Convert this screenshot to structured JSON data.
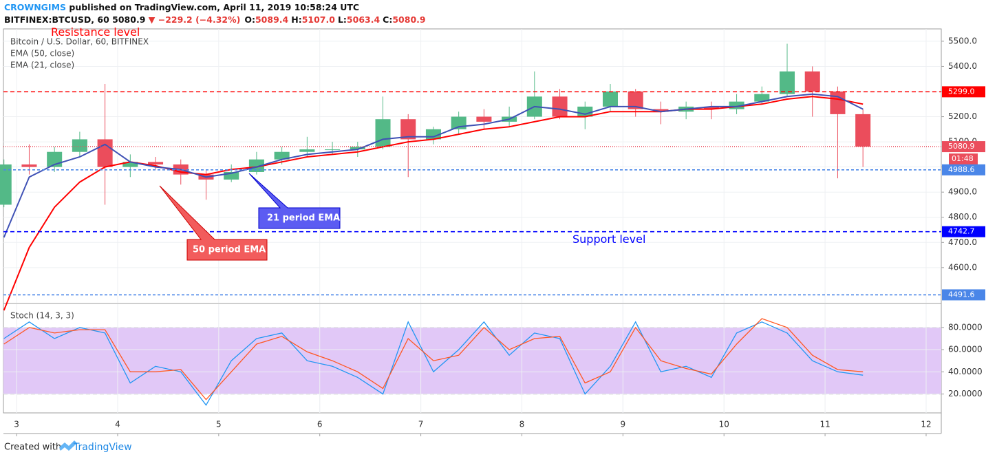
{
  "chart_data": [
    {
      "type": "candlestick",
      "publisher": "CROWNGIMS",
      "published": "published on TradingView.com, April 11, 2019 10:58:24 UTC",
      "symbol": "BITFINEX:BTCUSD, 60",
      "last": "5080.9",
      "change": "▼ −229.2 (−4.32%)",
      "ohlc": [
        {
          "key": "O:",
          "value": "5089.4"
        },
        {
          "key": "H:",
          "value": "5107.0"
        },
        {
          "key": "L:",
          "value": "5063.4"
        },
        {
          "key": "C:",
          "value": "5080.9"
        }
      ],
      "subtitle": "Bitcoin / U.S. Dollar, 60, BITFINEX",
      "footer": "Created with",
      "brand": "TradingView",
      "countdown": "01:48",
      "x": [
        2.875,
        3.125,
        3.375,
        3.625,
        3.875,
        4.125,
        4.375,
        4.625,
        4.875,
        5.125,
        5.375,
        5.625,
        5.875,
        6.125,
        6.375,
        6.625,
        6.875,
        7.125,
        7.375,
        7.625,
        7.875,
        8.125,
        8.375,
        8.625,
        8.875,
        9.125,
        9.375,
        9.625,
        9.875,
        10.125,
        10.375,
        10.625,
        10.875,
        11.125,
        11.375
      ],
      "open": [
        4850,
        5010,
        5000,
        5060,
        5110,
        5000,
        5020,
        5010,
        4970,
        4950,
        4980,
        5030,
        5060,
        5070,
        5070,
        5080,
        5190,
        5110,
        5150,
        5200,
        5180,
        5200,
        5280,
        5200,
        5240,
        5300,
        5230,
        5220,
        5240,
        5230,
        5260,
        5290,
        5380,
        5300,
        5210
      ],
      "high": [
        5030,
        5090,
        5080,
        5140,
        5330,
        5050,
        5040,
        5030,
        4990,
        5010,
        5060,
        5080,
        5120,
        5100,
        5100,
        5280,
        5210,
        5160,
        5220,
        5230,
        5240,
        5380,
        5310,
        5260,
        5330,
        5310,
        5260,
        5260,
        5260,
        5290,
        5320,
        5490,
        5400,
        5320,
        5230
      ],
      "low": [
        4840,
        4970,
        4980,
        5040,
        4850,
        4960,
        4990,
        4930,
        4870,
        4940,
        4970,
        5010,
        5040,
        5050,
        5040,
        5070,
        4960,
        5090,
        5130,
        5150,
        5160,
        5190,
        5190,
        5150,
        5220,
        5200,
        5170,
        5190,
        5190,
        5210,
        5250,
        5280,
        5200,
        4955,
        5000
      ],
      "close": [
        5010,
        5000,
        5060,
        5110,
        5000,
        5020,
        5010,
        4970,
        4950,
        4980,
        5030,
        5060,
        5070,
        5070,
        5080,
        5190,
        5110,
        5150,
        5200,
        5180,
        5200,
        5280,
        5200,
        5240,
        5300,
        5230,
        5220,
        5240,
        5230,
        5260,
        5290,
        5380,
        5300,
        5210,
        5080.9
      ],
      "color_up": "#53b987",
      "color_down": "#eb4d5c",
      "series": [
        {
          "name": "EMA (50, close)",
          "color": "#ff0000",
          "values": [
            4430,
            4680,
            4840,
            4940,
            5000,
            5020,
            5005,
            4980,
            4970,
            4990,
            5000,
            5020,
            5040,
            5050,
            5060,
            5080,
            5100,
            5110,
            5130,
            5150,
            5160,
            5180,
            5200,
            5200,
            5220,
            5220,
            5220,
            5230,
            5230,
            5240,
            5250,
            5270,
            5280,
            5270,
            5250
          ]
        },
        {
          "name": "EMA (21, close)",
          "color": "#3f51b5",
          "values": [
            4720,
            4960,
            5010,
            5040,
            5090,
            5020,
            5000,
            4990,
            4960,
            4975,
            5000,
            5030,
            5050,
            5060,
            5070,
            5110,
            5120,
            5120,
            5160,
            5170,
            5190,
            5240,
            5230,
            5210,
            5240,
            5240,
            5220,
            5230,
            5240,
            5240,
            5260,
            5280,
            5290,
            5280,
            5230
          ]
        }
      ],
      "levels": [
        {
          "value": 5299,
          "label": "5299.0",
          "color": "#ff0000",
          "dash": "6,4",
          "annotation": "Resistance level"
        },
        {
          "value": 5080.9,
          "label": "5080.9",
          "color": "#eb4d5c",
          "dash": "1,2"
        },
        {
          "value": 4988.6,
          "label": "4988.6",
          "color": "#4a86e8",
          "dash": "4,3"
        },
        {
          "value": 4742.7,
          "label": "4742.7",
          "color": "#0000ff",
          "dash": "6,4",
          "annotation": "Support level"
        },
        {
          "value": 4491.6,
          "label": "4491.6",
          "color": "#4a86e8",
          "dash": "4,3"
        }
      ],
      "callouts": [
        {
          "text": "50 period EMA",
          "color": "#f25c5c"
        },
        {
          "text": "21 period EMA",
          "color": "#5c5cf2"
        }
      ],
      "xlim": [
        2.87,
        12.15
      ],
      "xticks": [
        3,
        4,
        5,
        6,
        7,
        8,
        9,
        10,
        11,
        12
      ],
      "ylim": [
        4460,
        5549
      ],
      "yticks": [
        {
          "value": 4600,
          "label": "4600.0"
        },
        {
          "value": 4700,
          "label": "4700.0"
        },
        {
          "value": 4800,
          "label": "4800.0"
        },
        {
          "value": 4900,
          "label": "4900.0"
        },
        {
          "value": 5000,
          "label": "5000.0"
        },
        {
          "value": 5100,
          "label": "5100.0"
        },
        {
          "value": 5200,
          "label": "5200.0"
        },
        {
          "value": 5300,
          "label": "5300.0"
        },
        {
          "value": 5400,
          "label": "5400.0"
        },
        {
          "value": 5500,
          "label": "5500.0"
        }
      ],
      "grid": true
    },
    {
      "type": "line",
      "title": "Stoch (14, 3, 3)",
      "x": [
        2.875,
        3.125,
        3.375,
        3.625,
        3.875,
        4.125,
        4.375,
        4.625,
        4.875,
        5.125,
        5.375,
        5.625,
        5.875,
        6.125,
        6.375,
        6.625,
        6.875,
        7.125,
        7.375,
        7.625,
        7.875,
        8.125,
        8.375,
        8.625,
        8.875,
        9.125,
        9.375,
        9.625,
        9.875,
        10.125,
        10.375,
        10.625,
        10.875,
        11.125,
        11.375
      ],
      "series": [
        {
          "color": "#2196f3",
          "values": [
            70,
            85,
            70,
            80,
            75,
            30,
            45,
            40,
            10,
            50,
            70,
            75,
            50,
            45,
            35,
            20,
            85,
            40,
            60,
            85,
            55,
            75,
            70,
            20,
            45,
            85,
            40,
            45,
            35,
            75,
            85,
            75,
            50,
            40,
            37
          ]
        },
        {
          "color": "#ff5722",
          "values": [
            65,
            80,
            75,
            78,
            78,
            40,
            40,
            42,
            15,
            40,
            65,
            72,
            58,
            50,
            40,
            25,
            70,
            50,
            55,
            80,
            60,
            70,
            72,
            30,
            40,
            80,
            50,
            43,
            38,
            65,
            88,
            80,
            55,
            42,
            40
          ]
        }
      ],
      "band": [
        20,
        80
      ],
      "band_color": "#e1c8f7",
      "xlim": [
        2.87,
        12.15
      ],
      "ylim": [
        3,
        101
      ],
      "yticks": [
        {
          "value": 20,
          "label": "20.0000"
        },
        {
          "value": 40,
          "label": "40.0000"
        },
        {
          "value": 60,
          "label": "60.0000"
        },
        {
          "value": 80,
          "label": "80.0000"
        }
      ],
      "grid": true
    }
  ]
}
